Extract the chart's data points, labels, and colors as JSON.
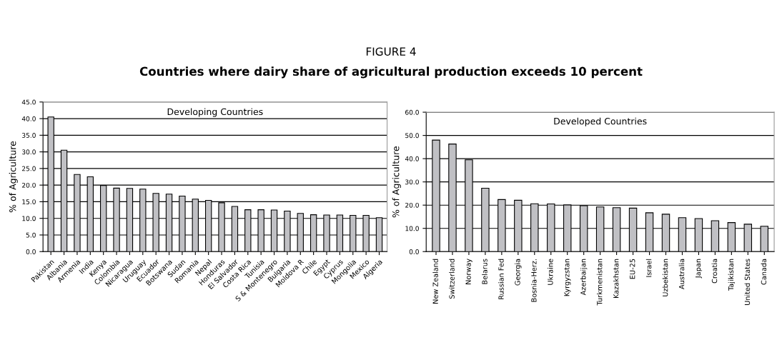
{
  "chart_data": [
    {
      "type": "bar",
      "title": "Developing Countries",
      "ylabel": "% of Agriculture",
      "categories": [
        "Pakistan",
        "Albania",
        "Armenia",
        "India",
        "Kenya",
        "Colombia",
        "Nicaragua",
        "Uruguay",
        "Ecuador",
        "Botswana",
        "Sudan",
        "Romania",
        "Nepal",
        "Honduras",
        "El Salvador",
        "Costa Rica",
        "Tunisia",
        "S & Montenegro",
        "Bulgaria",
        "Moldova R",
        "Chile",
        "Egypt",
        "Cyprus",
        "Mongolia",
        "Mexico",
        "Algeria"
      ],
      "values": [
        40.5,
        30.5,
        23.2,
        22.5,
        19.9,
        19.1,
        19.0,
        18.8,
        17.5,
        17.3,
        16.7,
        15.8,
        15.4,
        14.7,
        13.6,
        12.6,
        12.6,
        12.5,
        12.2,
        11.5,
        11.1,
        11.0,
        11.0,
        10.9,
        10.9,
        10.2
      ],
      "color": "#c0c0c4",
      "ylim": [
        0,
        45
      ],
      "yticks": [
        {
          "value": 0,
          "label": "0.0"
        },
        {
          "value": 5,
          "label": "5.0"
        },
        {
          "value": 10,
          "label": "10.0"
        },
        {
          "value": 15,
          "label": "15.0"
        },
        {
          "value": 20,
          "label": "20.0"
        },
        {
          "value": 25,
          "label": "25.0"
        },
        {
          "value": 30,
          "label": "30.0"
        },
        {
          "value": 35,
          "label": "35.0"
        },
        {
          "value": 40,
          "label": "40.0"
        },
        {
          "value": 45,
          "label": "45.0"
        }
      ],
      "grid": "y",
      "legend": false,
      "annotations": [
        "FIGURE 4",
        "Countries where dairy share of agricultural production exceeds 10 percent"
      ]
    },
    {
      "type": "bar",
      "title": "Developed Countries",
      "ylabel": "% of Agriculture",
      "categories": [
        "New Zealand",
        "Switzerland",
        "Norway",
        "Belarus",
        "Russian Fed",
        "Georgia",
        "Bosnia-Herz.",
        "Ukraine",
        "Kyrgyzstan",
        "Azerbaijan",
        "Turkmenistan",
        "Kazakhstan",
        "EU-25",
        "Israel",
        "Uzbekistan",
        "Australia",
        "Japan",
        "Croatia",
        "Tajikistan",
        "United States",
        "Canada"
      ],
      "values": [
        48.0,
        46.3,
        39.5,
        27.3,
        22.4,
        22.1,
        20.6,
        20.5,
        20.1,
        19.8,
        19.2,
        18.9,
        18.7,
        16.7,
        16.1,
        14.6,
        14.2,
        13.3,
        12.5,
        11.8,
        10.9
      ],
      "color": "#c0c0c4",
      "ylim": [
        0,
        60
      ],
      "yticks": [
        {
          "value": 0,
          "label": "0.0"
        },
        {
          "value": 10,
          "label": "10.0"
        },
        {
          "value": 20,
          "label": "20.0"
        },
        {
          "value": 30,
          "label": "30.0"
        },
        {
          "value": 40,
          "label": "40.0"
        },
        {
          "value": 50,
          "label": "50.0"
        },
        {
          "value": 60,
          "label": "60.0"
        }
      ],
      "grid": "y",
      "legend": false
    }
  ]
}
